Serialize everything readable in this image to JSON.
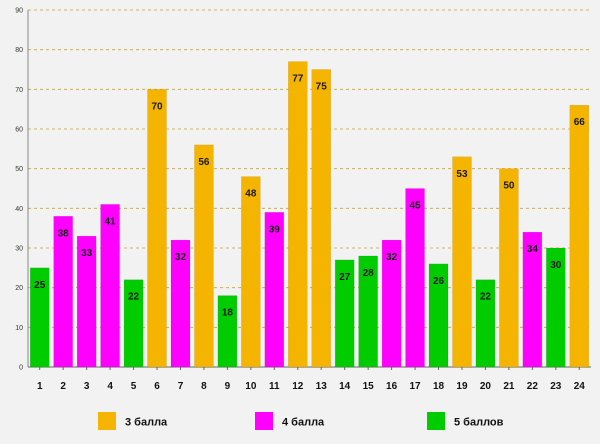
{
  "chart_data": {
    "type": "bar",
    "title": "",
    "xlabel": "",
    "ylabel": "",
    "ylim": [
      0,
      90
    ],
    "ytick_step": 10,
    "grid": true,
    "legend_position": "bottom",
    "categories": [
      "1",
      "2",
      "3",
      "4",
      "5",
      "6",
      "7",
      "8",
      "9",
      "10",
      "11",
      "12",
      "13",
      "14",
      "15",
      "16",
      "17",
      "18",
      "19",
      "20",
      "21",
      "22",
      "23",
      "24"
    ],
    "values": [
      25,
      38,
      33,
      41,
      22,
      70,
      32,
      56,
      18,
      48,
      39,
      77,
      75,
      27,
      28,
      32,
      45,
      26,
      53,
      22,
      50,
      34,
      30,
      66
    ],
    "bar_groups": [
      "5 баллов",
      "4 балла",
      "4 балла",
      "4 балла",
      "5 баллов",
      "3 балла",
      "4 балла",
      "3 балла",
      "5 баллов",
      "3 балла",
      "4 балла",
      "3 балла",
      "3 балла",
      "5 баллов",
      "5 баллов",
      "4 балла",
      "4 балла",
      "5 баллов",
      "3 балла",
      "5 баллов",
      "3 балла",
      "4 балла",
      "5 баллов",
      "3 балла"
    ],
    "legend": [
      {
        "name": "3 балла",
        "color": "#f4b400"
      },
      {
        "name": "4 балла",
        "color": "#ff00ff"
      },
      {
        "name": "5 баллов",
        "color": "#00cc00"
      }
    ]
  }
}
